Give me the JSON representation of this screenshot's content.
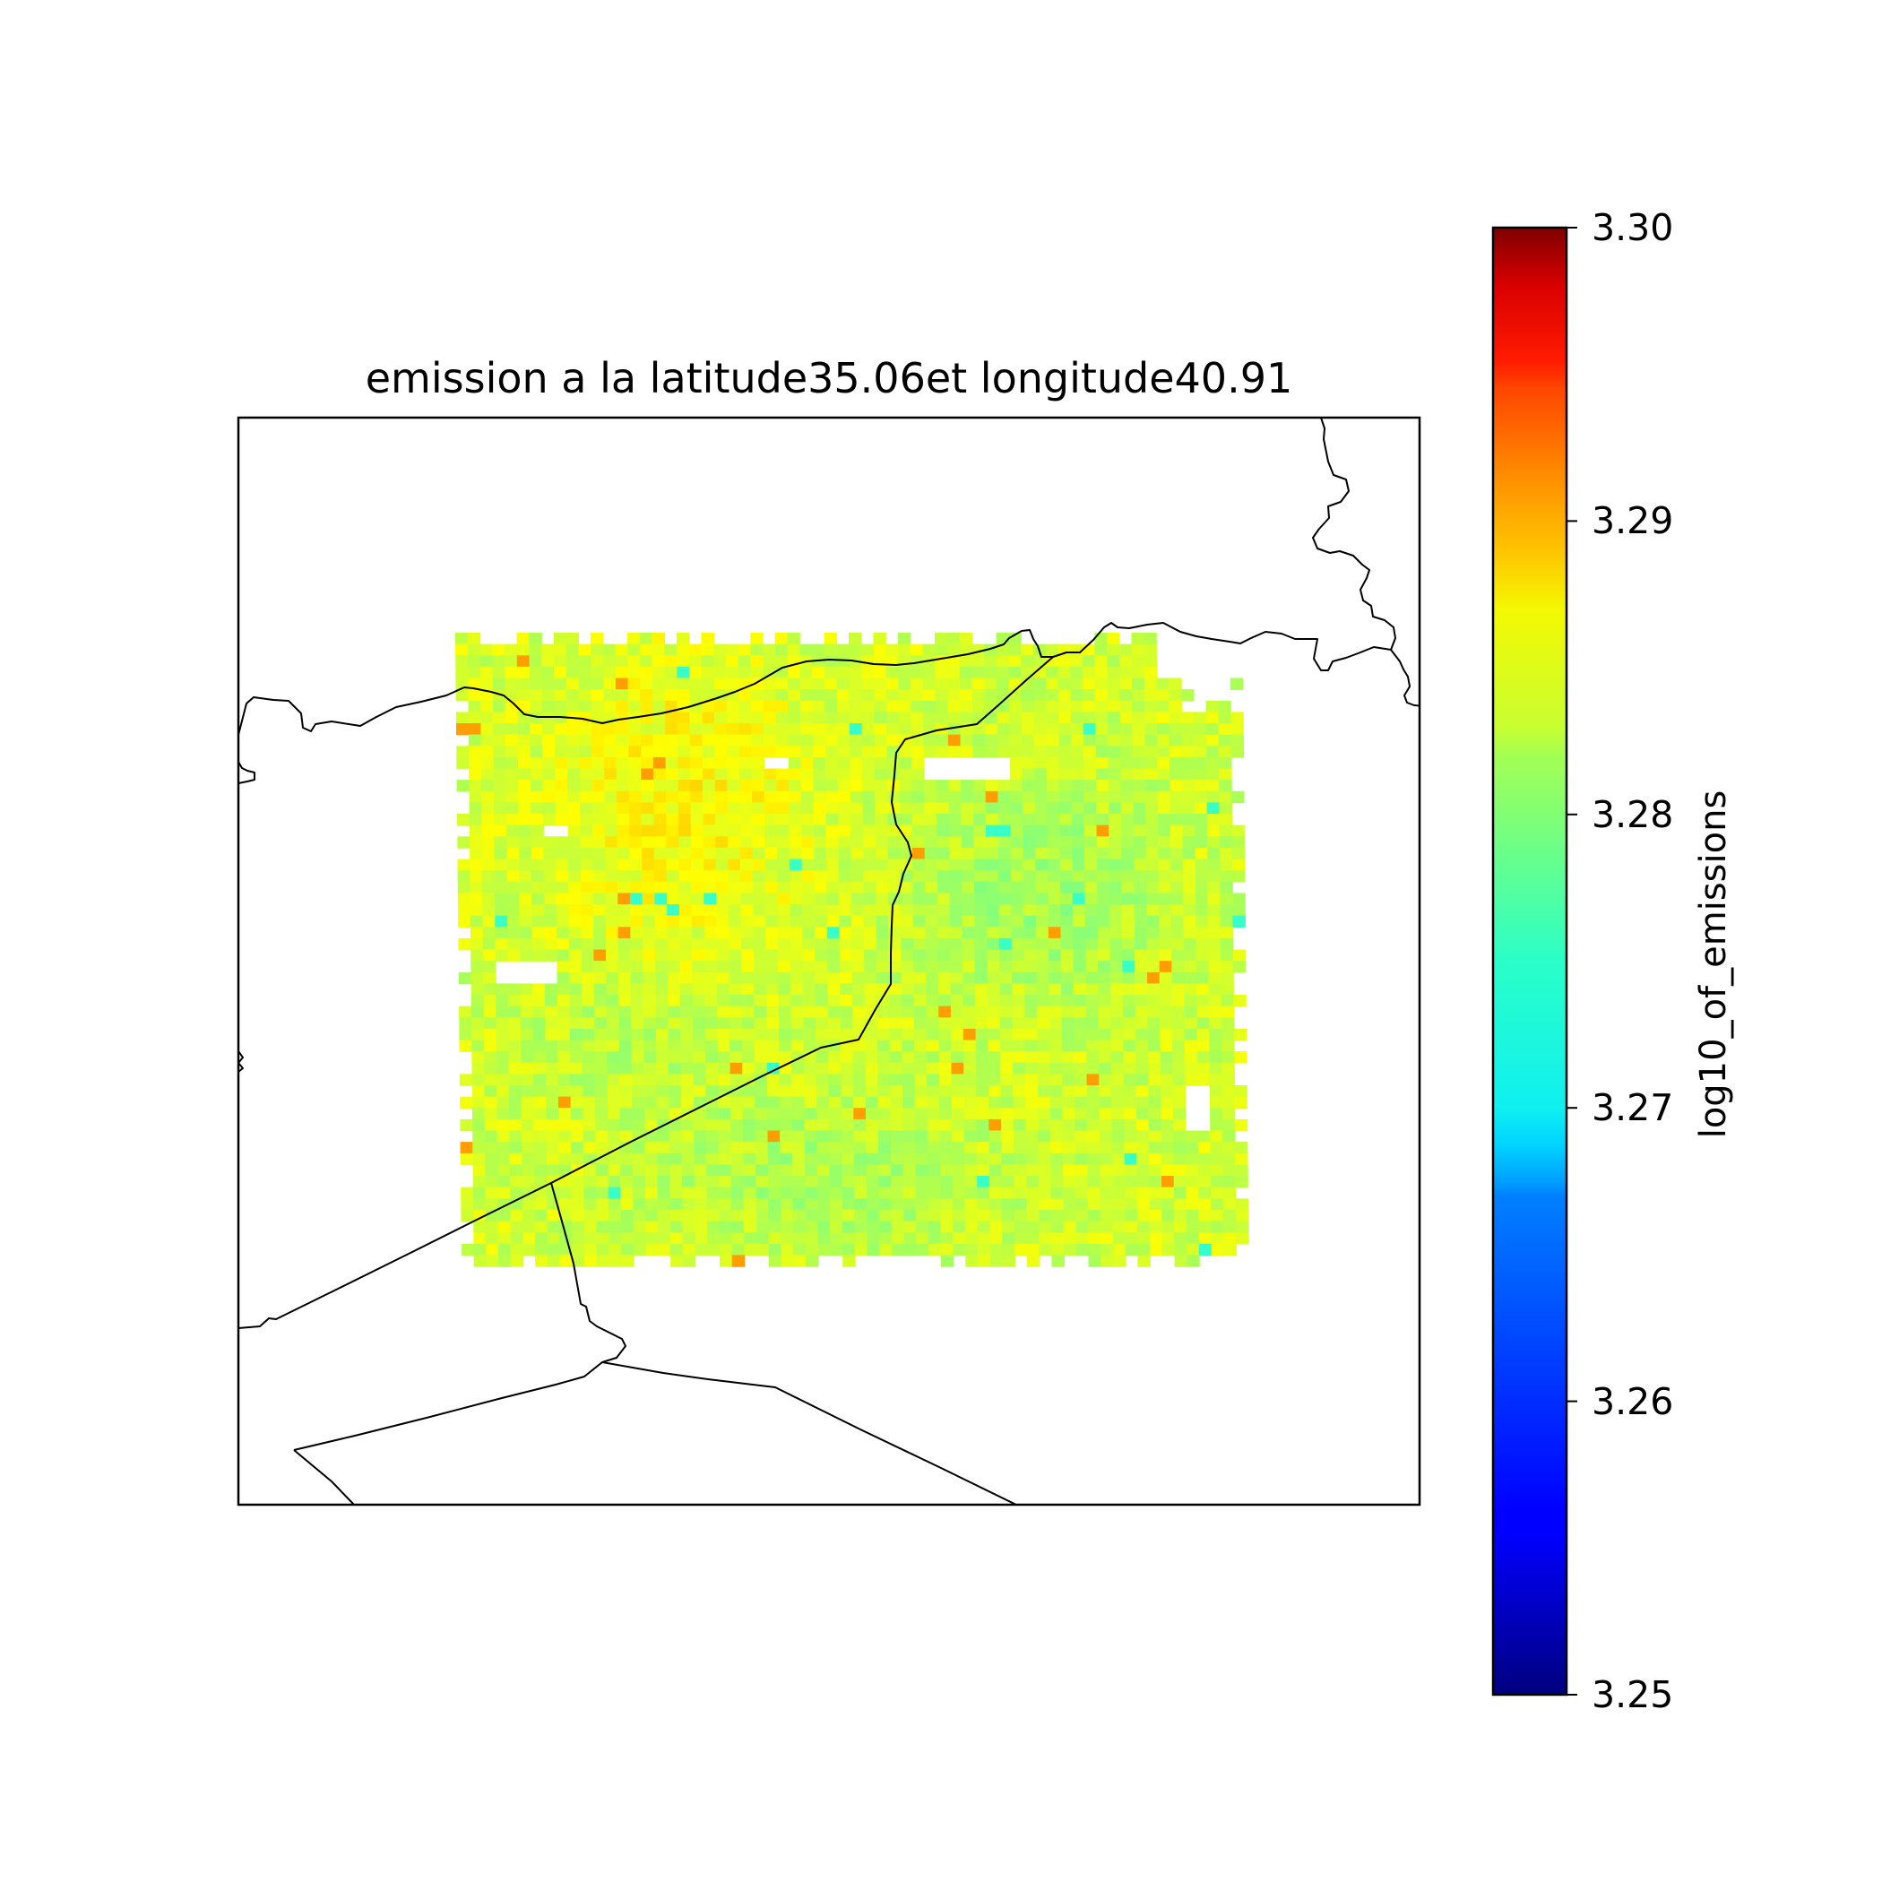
{
  "title": "emission a la latitude35.06et longitude40.91",
  "colorbar": {
    "label": "log10_of_emissions",
    "min": 3.25,
    "max": 3.3,
    "colormap": "jet",
    "ticks": [
      "3.30",
      "3.29",
      "3.28",
      "3.27",
      "3.26",
      "3.25"
    ]
  },
  "chart_data": {
    "type": "heatmap",
    "title": "emission a la latitude35.06et longitude40.91",
    "colorbar_label": "log10_of_emissions",
    "vmin": 3.25,
    "vmax": 3.3,
    "grid": false,
    "value_range_shown": [
      3.268,
      3.288
    ],
    "typical_value": 3.279,
    "notes_visible": "gridded emission field over a tilted rectangular swath, mostly yellow-green (about 3.278-3.281) with scattered cyan-green and orange pixels; country borders drawn as black lines"
  },
  "colors": {
    "frame": "#000000",
    "border_lines": "#000000",
    "background": "#ffffff"
  }
}
